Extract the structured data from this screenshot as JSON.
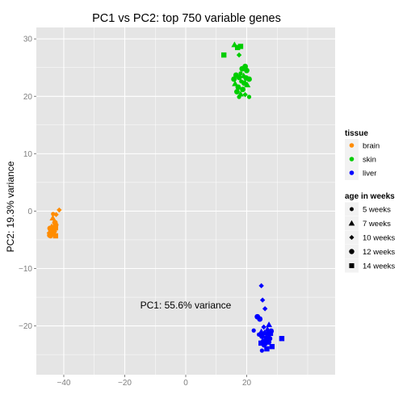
{
  "chart_data": {
    "type": "scatter",
    "title": "PC1 vs PC2: top 750 variable genes",
    "xlabel": "PC1: 55.6% variance",
    "ylabel": "PC2: 19.3% variance",
    "xlim": [
      -49,
      49
    ],
    "ylim": [
      -28.5,
      32
    ],
    "xticks": [
      -40,
      -20,
      0,
      20
    ],
    "yticks": [
      -20,
      -10,
      0,
      10,
      20,
      30
    ],
    "grid": true,
    "background": "#e5e5e5",
    "legend_position": "right",
    "color_legend": {
      "title": "tissue",
      "entries": [
        {
          "label": "brain",
          "color": "#ff8c00"
        },
        {
          "label": "skin",
          "color": "#00cd00"
        },
        {
          "label": "liver",
          "color": "#0000ff"
        }
      ]
    },
    "shape_legend": {
      "title": "age in weeks",
      "entries": [
        {
          "label": "5 weeks",
          "shape": "circle-small"
        },
        {
          "label": "7 weeks",
          "shape": "triangle"
        },
        {
          "label": "10 weeks",
          "shape": "diamond"
        },
        {
          "label": "12 weeks",
          "shape": "circle"
        },
        {
          "label": "14 weeks",
          "shape": "square"
        }
      ]
    },
    "series": [
      {
        "tissue": "brain",
        "points": [
          [
            -43.5,
            -0.5,
            "circle-small"
          ],
          [
            -42.5,
            -0.6,
            "diamond"
          ],
          [
            -41.5,
            0.2,
            "diamond"
          ],
          [
            -43.6,
            -1.2,
            "triangle"
          ],
          [
            -42.9,
            -2.0,
            "circle"
          ],
          [
            -42.4,
            -2.4,
            "circle-small"
          ],
          [
            -44.0,
            -2.7,
            "triangle"
          ],
          [
            -43.2,
            -2.8,
            "circle"
          ],
          [
            -44.5,
            -3.0,
            "circle"
          ],
          [
            -42.7,
            -2.9,
            "square"
          ],
          [
            -44.3,
            -3.4,
            "diamond"
          ],
          [
            -43.5,
            -3.5,
            "circle"
          ],
          [
            -44.8,
            -3.8,
            "diamond"
          ],
          [
            -43.9,
            -4.0,
            "circle"
          ],
          [
            -42.7,
            -4.3,
            "square"
          ],
          [
            -44.3,
            -4.4,
            "circle-small"
          ],
          [
            -43.4,
            -3.9,
            "triangle"
          ],
          [
            -42.9,
            -3.3,
            "circle-small"
          ],
          [
            -44.6,
            -4.2,
            "circle"
          ],
          [
            -43.0,
            -3.6,
            "diamond"
          ]
        ]
      },
      {
        "tissue": "skin",
        "points": [
          [
            16.0,
            29.0,
            "triangle"
          ],
          [
            17.0,
            28.5,
            "square"
          ],
          [
            18.0,
            28.7,
            "square"
          ],
          [
            12.5,
            27.2,
            "square"
          ],
          [
            17.5,
            27.2,
            "diamond"
          ],
          [
            19.5,
            25.2,
            "circle"
          ],
          [
            18.5,
            24.8,
            "circle"
          ],
          [
            20.0,
            24.5,
            "circle"
          ],
          [
            18.0,
            24.0,
            "circle-small"
          ],
          [
            19.0,
            23.6,
            "triangle"
          ],
          [
            16.5,
            23.7,
            "circle"
          ],
          [
            17.5,
            23.3,
            "circle"
          ],
          [
            15.8,
            23.0,
            "circle"
          ],
          [
            19.8,
            23.2,
            "circle"
          ],
          [
            20.8,
            23.0,
            "circle"
          ],
          [
            18.2,
            22.6,
            "circle-small"
          ],
          [
            16.2,
            22.2,
            "triangle"
          ],
          [
            19.2,
            22.3,
            "circle"
          ],
          [
            20.2,
            22.0,
            "triangle"
          ],
          [
            17.2,
            21.6,
            "circle"
          ],
          [
            18.7,
            21.2,
            "circle"
          ],
          [
            16.8,
            20.8,
            "circle"
          ],
          [
            18.0,
            20.4,
            "triangle"
          ],
          [
            19.5,
            20.3,
            "diamond"
          ],
          [
            20.8,
            19.9,
            "circle-small"
          ],
          [
            17.5,
            19.9,
            "circle-small"
          ]
        ]
      },
      {
        "tissue": "liver",
        "points": [
          [
            24.8,
            -13.0,
            "diamond"
          ],
          [
            25.2,
            -15.5,
            "diamond"
          ],
          [
            26.0,
            -17.0,
            "diamond"
          ],
          [
            23.5,
            -18.4,
            "circle"
          ],
          [
            24.3,
            -18.8,
            "circle"
          ],
          [
            27.3,
            -19.8,
            "triangle"
          ],
          [
            25.6,
            -20.2,
            "diamond"
          ],
          [
            26.8,
            -20.6,
            "triangle"
          ],
          [
            28.0,
            -20.9,
            "circle"
          ],
          [
            22.3,
            -20.8,
            "circle-small"
          ],
          [
            24.8,
            -21.0,
            "triangle"
          ],
          [
            25.8,
            -21.2,
            "triangle"
          ],
          [
            26.9,
            -21.4,
            "circle"
          ],
          [
            27.8,
            -21.3,
            "square"
          ],
          [
            24.0,
            -21.5,
            "circle-small"
          ],
          [
            25.0,
            -21.8,
            "circle"
          ],
          [
            26.3,
            -22.0,
            "circle-small"
          ],
          [
            27.5,
            -22.2,
            "circle"
          ],
          [
            31.5,
            -22.2,
            "square"
          ],
          [
            25.3,
            -22.5,
            "triangle"
          ],
          [
            26.5,
            -22.6,
            "square"
          ],
          [
            27.2,
            -22.8,
            "circle"
          ],
          [
            24.7,
            -23.0,
            "square"
          ],
          [
            26.0,
            -23.1,
            "circle"
          ],
          [
            25.6,
            -23.4,
            "circle-small"
          ],
          [
            28.3,
            -23.6,
            "square"
          ],
          [
            26.6,
            -24.0,
            "square"
          ],
          [
            25.0,
            -24.3,
            "circle-small"
          ]
        ]
      }
    ]
  }
}
